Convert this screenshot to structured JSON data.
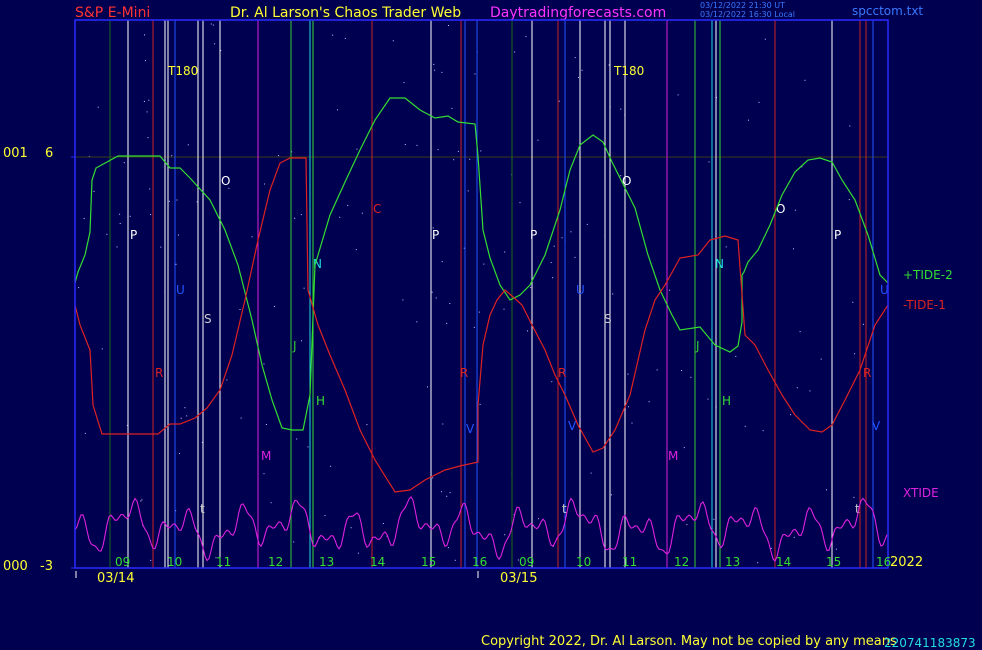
{
  "header": {
    "left": "S&P E-Mini",
    "center": "Dr. Al Larson's Chaos Trader Web",
    "site": "Daytradingforecasts.com",
    "stamp1": "03/12/2022 21:30 UT",
    "stamp2": "03/12/2022 16:30 Local",
    "file": "spcctom.txt"
  },
  "colors": {
    "background": "#000050",
    "frame": "#2a2aff",
    "tide_plus": "#33dd33",
    "tide_minus": "#dd2222",
    "xtide": "#dd22dd",
    "text": "#ffff33"
  },
  "footer": {
    "copyright": "Copyright 2022, Dr. Al Larson. May not be copied by any means",
    "overlap_digits": "220741183873"
  },
  "chart_data": {
    "type": "line",
    "ylim": [
      -3,
      6
    ],
    "y_ticks": [
      {
        "value": 6,
        "label": "6",
        "prefix": "001"
      },
      {
        "value": -3,
        "label": "-3",
        "prefix": "000"
      }
    ],
    "hours": [
      "09",
      "10",
      "11",
      "12",
      "13",
      "14",
      "15",
      "16",
      "09",
      "10",
      "11",
      "12",
      "13",
      "14",
      "15",
      "16"
    ],
    "dates": [
      "03/14",
      "03/15"
    ],
    "year": "2022",
    "series": [
      {
        "name": "+TIDE-2",
        "color": "#33dd33"
      },
      {
        "name": "-TIDE-1",
        "color": "#dd2222"
      },
      {
        "name": "XTIDE",
        "color": "#dd22dd"
      }
    ],
    "markers": [
      {
        "label": "T180",
        "color": "#ffff33"
      },
      {
        "label": "P",
        "color": "#ffffff"
      },
      {
        "label": "O",
        "color": "#ffffff"
      },
      {
        "label": "U",
        "color": "#2255ff"
      },
      {
        "label": "S",
        "color": "#cccccc"
      },
      {
        "label": "R",
        "color": "#dd2222"
      },
      {
        "label": "M",
        "color": "#dd22dd"
      },
      {
        "label": "J",
        "color": "#33cc33"
      },
      {
        "label": "H",
        "color": "#33dd33"
      },
      {
        "label": "N",
        "color": "#22dddd"
      },
      {
        "label": "C",
        "color": "#dd2222"
      },
      {
        "label": "V",
        "color": "#2255ff"
      },
      {
        "label": "t",
        "color": "#cccccc"
      }
    ]
  }
}
